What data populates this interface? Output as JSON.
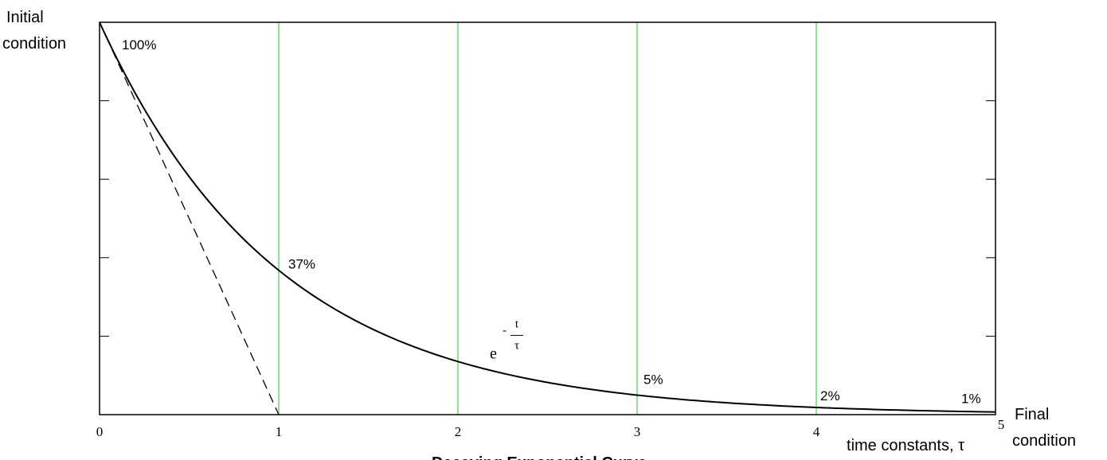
{
  "chart_data": {
    "type": "line",
    "title": "Decaying Exponential Curve",
    "xlabel": "time constants, τ",
    "y_top_label": [
      "Initial",
      "condition"
    ],
    "x_end_label": [
      "Final",
      "condition"
    ],
    "xlim": [
      0,
      5
    ],
    "ylim": [
      0,
      1
    ],
    "x_ticks": [
      0,
      1,
      2,
      3,
      4,
      5
    ],
    "x_tick_labels": [
      "0",
      "1",
      "2",
      "3",
      "4",
      "5"
    ],
    "y_ticks": [
      0.2,
      0.4,
      0.6,
      0.8
    ],
    "vertical_gridlines": [
      1,
      2,
      3,
      4
    ],
    "grid_color": "#66dd66",
    "series": [
      {
        "function": "exp(-t/tau)",
        "style": "solid",
        "x": [
          0,
          0.25,
          0.5,
          0.75,
          1,
          1.25,
          1.5,
          1.75,
          2,
          2.5,
          3,
          3.5,
          4,
          4.5,
          5
        ],
        "values": [
          1.0,
          0.779,
          0.607,
          0.472,
          0.368,
          0.287,
          0.223,
          0.174,
          0.135,
          0.082,
          0.05,
          0.03,
          0.018,
          0.011,
          0.007
        ]
      },
      {
        "function": "initial slope tangent",
        "style": "dashed",
        "x": [
          0,
          1
        ],
        "values": [
          1,
          0
        ]
      }
    ],
    "annotations": [
      {
        "text": "100%",
        "x": 0,
        "y": 1.0
      },
      {
        "text": "37%",
        "x": 1,
        "y": 0.368
      },
      {
        "text": "5%",
        "x": 3,
        "y": 0.05
      },
      {
        "text": "2%",
        "x": 4,
        "y": 0.018
      },
      {
        "text": "1%",
        "x": 5,
        "y": 0.007
      }
    ],
    "formula": {
      "base": "e",
      "sign": "-",
      "numerator": "t",
      "denominator": "τ",
      "x": 2.2,
      "y": 0.2
    }
  }
}
